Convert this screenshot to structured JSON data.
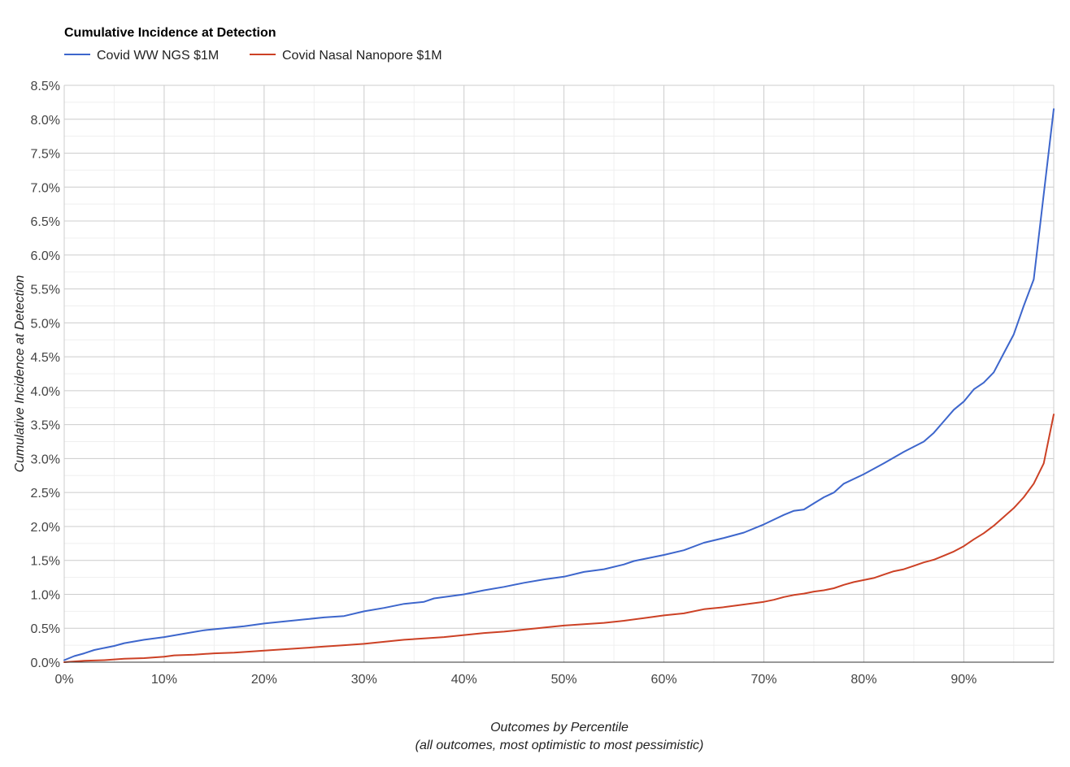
{
  "chart_data": {
    "type": "line",
    "title": "Cumulative Incidence at Detection",
    "xlabel": "Outcomes by Percentile",
    "xlabel_sub": "(all outcomes, most optimistic to most pessimistic)",
    "ylabel": "Cumulative Incidence at Detection",
    "xlim": [
      0,
      99
    ],
    "ylim": [
      0,
      8.5
    ],
    "x_ticks": [
      "0%",
      "10%",
      "20%",
      "30%",
      "40%",
      "50%",
      "60%",
      "70%",
      "80%",
      "90%"
    ],
    "x_tick_values": [
      0,
      10,
      20,
      30,
      40,
      50,
      60,
      70,
      80,
      90
    ],
    "y_ticks": [
      "0.0%",
      "0.5%",
      "1.0%",
      "1.5%",
      "2.0%",
      "2.5%",
      "3.0%",
      "3.5%",
      "4.0%",
      "4.5%",
      "5.0%",
      "5.5%",
      "6.0%",
      "6.5%",
      "7.0%",
      "7.5%",
      "8.0%",
      "8.5%"
    ],
    "y_tick_values": [
      0,
      0.5,
      1.0,
      1.5,
      2.0,
      2.5,
      3.0,
      3.5,
      4.0,
      4.5,
      5.0,
      5.5,
      6.0,
      6.5,
      7.0,
      7.5,
      8.0,
      8.5
    ],
    "grid": true,
    "legend_position": "top-left",
    "series": [
      {
        "name": "Covid WW NGS $1M",
        "color": "#3d66cc",
        "x": [
          0,
          1,
          2,
          3,
          4,
          5,
          6,
          8,
          10,
          12,
          14,
          16,
          18,
          20,
          22,
          24,
          26,
          28,
          30,
          32,
          34,
          36,
          37,
          40,
          42,
          44,
          46,
          48,
          50,
          52,
          54,
          56,
          57,
          58,
          60,
          62,
          64,
          66,
          68,
          70,
          72,
          73,
          74,
          75,
          76,
          77,
          78,
          80,
          82,
          84,
          86,
          87,
          88,
          89,
          90,
          91,
          92,
          93,
          94,
          95,
          96,
          97,
          99
        ],
        "y": [
          0.03,
          0.09,
          0.13,
          0.18,
          0.21,
          0.24,
          0.28,
          0.33,
          0.37,
          0.42,
          0.47,
          0.5,
          0.53,
          0.57,
          0.6,
          0.63,
          0.66,
          0.68,
          0.75,
          0.8,
          0.86,
          0.89,
          0.94,
          1.0,
          1.06,
          1.11,
          1.17,
          1.22,
          1.26,
          1.33,
          1.37,
          1.44,
          1.49,
          1.52,
          1.58,
          1.65,
          1.76,
          1.83,
          1.91,
          2.03,
          2.17,
          2.23,
          2.25,
          2.34,
          2.43,
          2.5,
          2.63,
          2.77,
          2.93,
          3.1,
          3.25,
          3.38,
          3.55,
          3.72,
          3.84,
          4.02,
          4.12,
          4.27,
          4.55,
          4.83,
          5.25,
          5.64,
          8.15
        ]
      },
      {
        "name": "Covid Nasal Nanopore $1M",
        "color": "#cc4125",
        "x": [
          0,
          2,
          4,
          6,
          8,
          10,
          11,
          13,
          15,
          17,
          20,
          22,
          24,
          26,
          28,
          30,
          32,
          34,
          36,
          38,
          40,
          42,
          44,
          46,
          48,
          50,
          52,
          54,
          56,
          58,
          60,
          62,
          64,
          66,
          68,
          70,
          71,
          72,
          73,
          74,
          75,
          76,
          77,
          78,
          79,
          80,
          81,
          82,
          83,
          84,
          85,
          86,
          87,
          88,
          89,
          90,
          91,
          92,
          93,
          94,
          95,
          96,
          97,
          98,
          99
        ],
        "y": [
          0.0,
          0.02,
          0.03,
          0.05,
          0.06,
          0.08,
          0.1,
          0.11,
          0.13,
          0.14,
          0.17,
          0.19,
          0.21,
          0.23,
          0.25,
          0.27,
          0.3,
          0.33,
          0.35,
          0.37,
          0.4,
          0.43,
          0.45,
          0.48,
          0.51,
          0.54,
          0.56,
          0.58,
          0.61,
          0.65,
          0.69,
          0.72,
          0.78,
          0.81,
          0.85,
          0.89,
          0.92,
          0.96,
          0.99,
          1.01,
          1.04,
          1.06,
          1.09,
          1.14,
          1.18,
          1.21,
          1.24,
          1.29,
          1.34,
          1.37,
          1.42,
          1.47,
          1.51,
          1.57,
          1.63,
          1.71,
          1.81,
          1.9,
          2.01,
          2.14,
          2.27,
          2.43,
          2.63,
          2.93,
          3.65
        ]
      }
    ]
  }
}
